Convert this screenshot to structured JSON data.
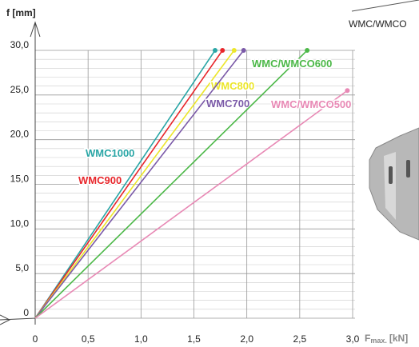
{
  "chart_data": {
    "type": "line",
    "y_label": "f [mm]",
    "x_label": "F",
    "x_label_subscript": "max.",
    "x_label_unit": "[kN]",
    "annotation": "WMC/WMCO",
    "xlim": [
      0,
      3.0
    ],
    "xticks": [
      0,
      {
        "value": 0.5,
        "label": "0,5"
      },
      {
        "value": 1.0,
        "label": "1,0"
      },
      {
        "value": 1.5,
        "label": "1,5"
      },
      {
        "value": 2.0,
        "label": "2,0"
      },
      {
        "value": 2.5,
        "label": "2,5"
      },
      {
        "value": 3.0,
        "label": "3,0"
      }
    ],
    "ylim": [
      0,
      30.0
    ],
    "yticks": [
      0,
      {
        "value": 5,
        "label": "5,0"
      },
      {
        "value": 10,
        "label": "10,0"
      },
      {
        "value": 15,
        "label": "15,0"
      },
      {
        "value": 20,
        "label": "20,0"
      },
      {
        "value": 25,
        "label": "25,0"
      },
      {
        "value": 30,
        "label": "30,0"
      }
    ],
    "grid": true,
    "series": [
      {
        "name": "WMC1000",
        "color": "#2aa6a6",
        "x": [
          0,
          1.7
        ],
        "values": [
          0,
          30
        ]
      },
      {
        "name": "WMC900",
        "color": "#e8262b",
        "x": [
          0,
          1.77
        ],
        "values": [
          0,
          30
        ]
      },
      {
        "name": "WMC800",
        "color": "#ece62a",
        "x": [
          0,
          1.88
        ],
        "values": [
          0,
          30
        ]
      },
      {
        "name": "WMC700",
        "color": "#7b5aa8",
        "x": [
          0,
          1.97
        ],
        "values": [
          0,
          30
        ]
      },
      {
        "name": "WMC/WMCO600",
        "color": "#4cb848",
        "x": [
          0,
          2.57
        ],
        "values": [
          0,
          30
        ]
      },
      {
        "name": "WMC/WMCO500",
        "color": "#e889b5",
        "x": [
          0,
          2.95
        ],
        "values": [
          0,
          25.5
        ]
      }
    ]
  }
}
